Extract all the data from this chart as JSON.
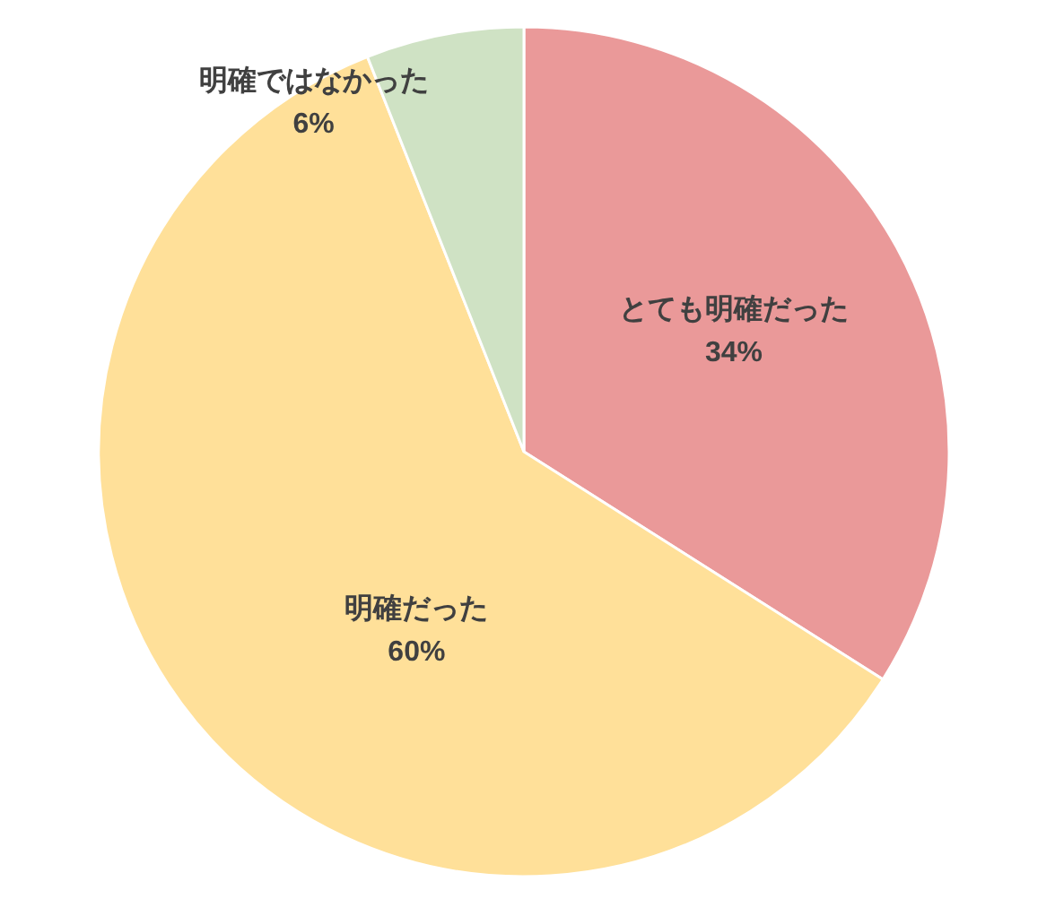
{
  "chart_data": {
    "type": "pie",
    "categories": [
      "とても明確だった",
      "明確だった",
      "明確ではなかった"
    ],
    "values": [
      34,
      60,
      6
    ],
    "colors": [
      "#ea9999",
      "#ffe099",
      "#cfe2c4"
    ],
    "value_labels": [
      "34%",
      "60%",
      "6%"
    ]
  }
}
